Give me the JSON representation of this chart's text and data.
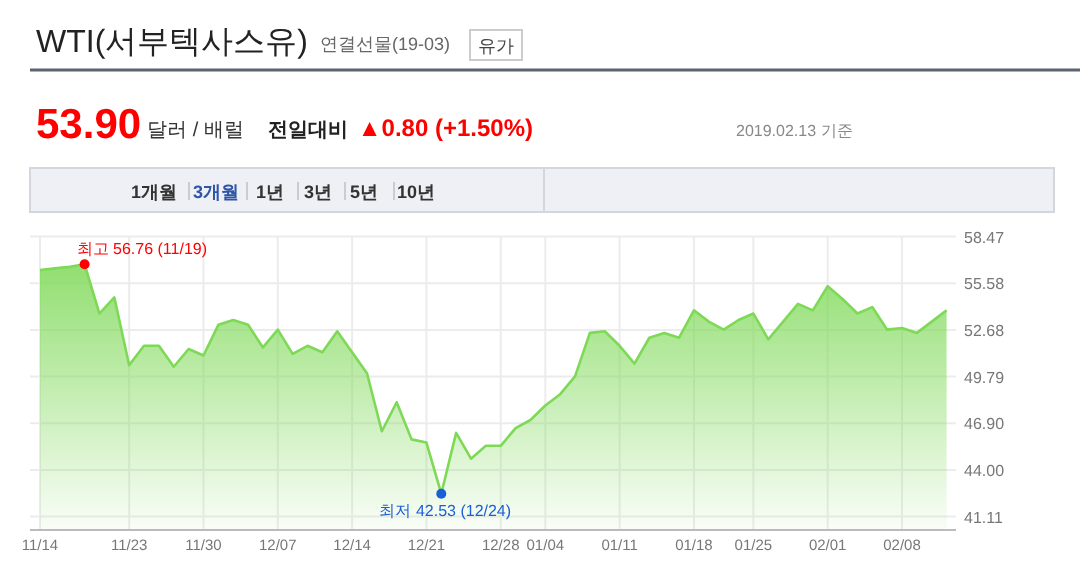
{
  "chart_data": {
    "type": "area",
    "title": "WTI(서부텍사스유)",
    "subtitle": "연결선물(19-03)",
    "annotations": [
      "유가",
      "53.90",
      "달러 / 배럴",
      "전일대비",
      "▲0.80 (+1.50%)",
      "2019.02.13 기준",
      "1개월",
      "3개월",
      "1년",
      "3년",
      "5년",
      "10년"
    ],
    "categories": [
      "11/14",
      null,
      null,
      null,
      null,
      null,
      "11/23",
      null,
      null,
      null,
      null,
      "11/30",
      null,
      null,
      null,
      null,
      "12/07",
      null,
      null,
      null,
      null,
      "12/14",
      null,
      null,
      null,
      null,
      "12/21",
      null,
      null,
      null,
      null,
      "12/28",
      null,
      null,
      "01/04",
      null,
      null,
      null,
      null,
      "01/11",
      null,
      null,
      null,
      null,
      "01/18",
      null,
      null,
      null,
      "01/25",
      null,
      null,
      null,
      null,
      "02/01",
      null,
      null,
      null,
      null,
      "02/08",
      null,
      null,
      null
    ],
    "series": [
      {
        "color": "#7ed957",
        "values": [
          56.4,
          56.5,
          56.6,
          56.76,
          53.7,
          54.7,
          50.5,
          51.7,
          51.7,
          50.4,
          51.5,
          51.1,
          53.0,
          53.3,
          53.0,
          51.6,
          52.7,
          51.2,
          51.7,
          51.3,
          52.6,
          51.3,
          50.0,
          46.4,
          48.2,
          45.9,
          45.7,
          42.53,
          46.3,
          44.7,
          45.5,
          45.5,
          46.6,
          47.1,
          48.0,
          48.7,
          49.8,
          52.5,
          52.6,
          51.7,
          50.6,
          52.2,
          52.5,
          52.2,
          53.9,
          53.2,
          52.7,
          53.3,
          53.7,
          52.1,
          53.2,
          54.3,
          53.9,
          55.4,
          54.6,
          53.7,
          54.1,
          52.7,
          52.8,
          52.5,
          53.2,
          53.9
        ],
        "value_labels": [
          null,
          null,
          null,
          "최고 56.76 (11/19)",
          null,
          null,
          null,
          null,
          null,
          null,
          null,
          null,
          null,
          null,
          null,
          null,
          null,
          null,
          null,
          null,
          null,
          null,
          null,
          null,
          null,
          null,
          null,
          "최저 42.53 (12/24)",
          null,
          null,
          null,
          null,
          null,
          null,
          null,
          null,
          null,
          null,
          null,
          null,
          null,
          null,
          null,
          null,
          null,
          null,
          null,
          null,
          null,
          null,
          null,
          null,
          null,
          null,
          null,
          null,
          null,
          null,
          null,
          null,
          null,
          null
        ]
      }
    ],
    "ylim": [
      40.28,
      58.47
    ],
    "yticks": [
      41.11,
      {
        "value": 44.0,
        "label": "44.00"
      },
      {
        "value": 46.9,
        "label": "46.90"
      },
      49.79,
      52.68,
      55.58,
      58.47
    ],
    "grid": true
  }
}
